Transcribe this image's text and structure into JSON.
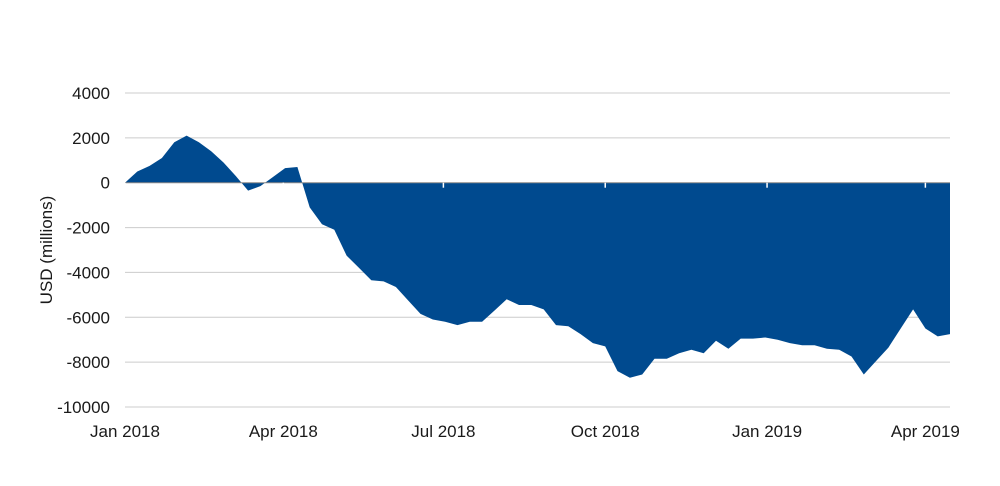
{
  "chart_data": {
    "type": "area",
    "title": "",
    "xlabel": "",
    "ylabel": "USD (millions)",
    "ylim": [
      -10000,
      4000
    ],
    "yticks": [
      4000,
      2000,
      0,
      -2000,
      -4000,
      -6000,
      -8000,
      -10000
    ],
    "xticks": [
      "Jan 2018",
      "Apr 2018",
      "Jul 2018",
      "Oct 2018",
      "Jan 2019",
      "Apr 2019"
    ],
    "grid": true,
    "legend": "none",
    "colors": {
      "fill": "#004a8f",
      "grid": "#cccccc",
      "zero_line": "#888888"
    },
    "series": [
      {
        "x": [
          "2018-01-01",
          "2018-01-08",
          "2018-01-15",
          "2018-01-22",
          "2018-01-29",
          "2018-02-05",
          "2018-02-12",
          "2018-02-19",
          "2018-02-26",
          "2018-03-05",
          "2018-03-12",
          "2018-03-19",
          "2018-03-26",
          "2018-04-02",
          "2018-04-09",
          "2018-04-16",
          "2018-04-23",
          "2018-04-30",
          "2018-05-07",
          "2018-05-14",
          "2018-05-21",
          "2018-05-28",
          "2018-06-04",
          "2018-06-11",
          "2018-06-18",
          "2018-06-25",
          "2018-07-02",
          "2018-07-09",
          "2018-07-16",
          "2018-07-23",
          "2018-07-30",
          "2018-08-06",
          "2018-08-13",
          "2018-08-20",
          "2018-08-27",
          "2018-09-03",
          "2018-09-10",
          "2018-09-17",
          "2018-09-24",
          "2018-10-01",
          "2018-10-08",
          "2018-10-15",
          "2018-10-22",
          "2018-10-29",
          "2018-11-05",
          "2018-11-12",
          "2018-11-19",
          "2018-11-26",
          "2018-12-03",
          "2018-12-10",
          "2018-12-17",
          "2018-12-24",
          "2018-12-31",
          "2019-01-07",
          "2019-01-14",
          "2019-01-21",
          "2019-01-28",
          "2019-02-04",
          "2019-02-11",
          "2019-02-18",
          "2019-02-25",
          "2019-03-04",
          "2019-03-11",
          "2019-03-18",
          "2019-03-25",
          "2019-04-01",
          "2019-04-08",
          "2019-04-15"
        ],
        "values": [
          0,
          500,
          750,
          1100,
          1800,
          2100,
          1800,
          1400,
          900,
          300,
          -350,
          -150,
          250,
          650,
          700,
          -1100,
          -1850,
          -2100,
          -3250,
          -3800,
          -4350,
          -4400,
          -4650,
          -5250,
          -5850,
          -6100,
          -6200,
          -6350,
          -6200,
          -6200,
          -5700,
          -5200,
          -5450,
          -5450,
          -5650,
          -6350,
          -6400,
          -6750,
          -7150,
          -7300,
          -8400,
          -8700,
          -8550,
          -7850,
          -7850,
          -7600,
          -7450,
          -7600,
          -7050,
          -7400,
          -6950,
          -6950,
          -6900,
          -7000,
          -7150,
          -7250,
          -7250,
          -7400,
          -7450,
          -7750,
          -8550,
          -7950,
          -7350,
          -6500,
          -5650,
          -6500,
          -6850,
          -6750
        ]
      }
    ]
  }
}
